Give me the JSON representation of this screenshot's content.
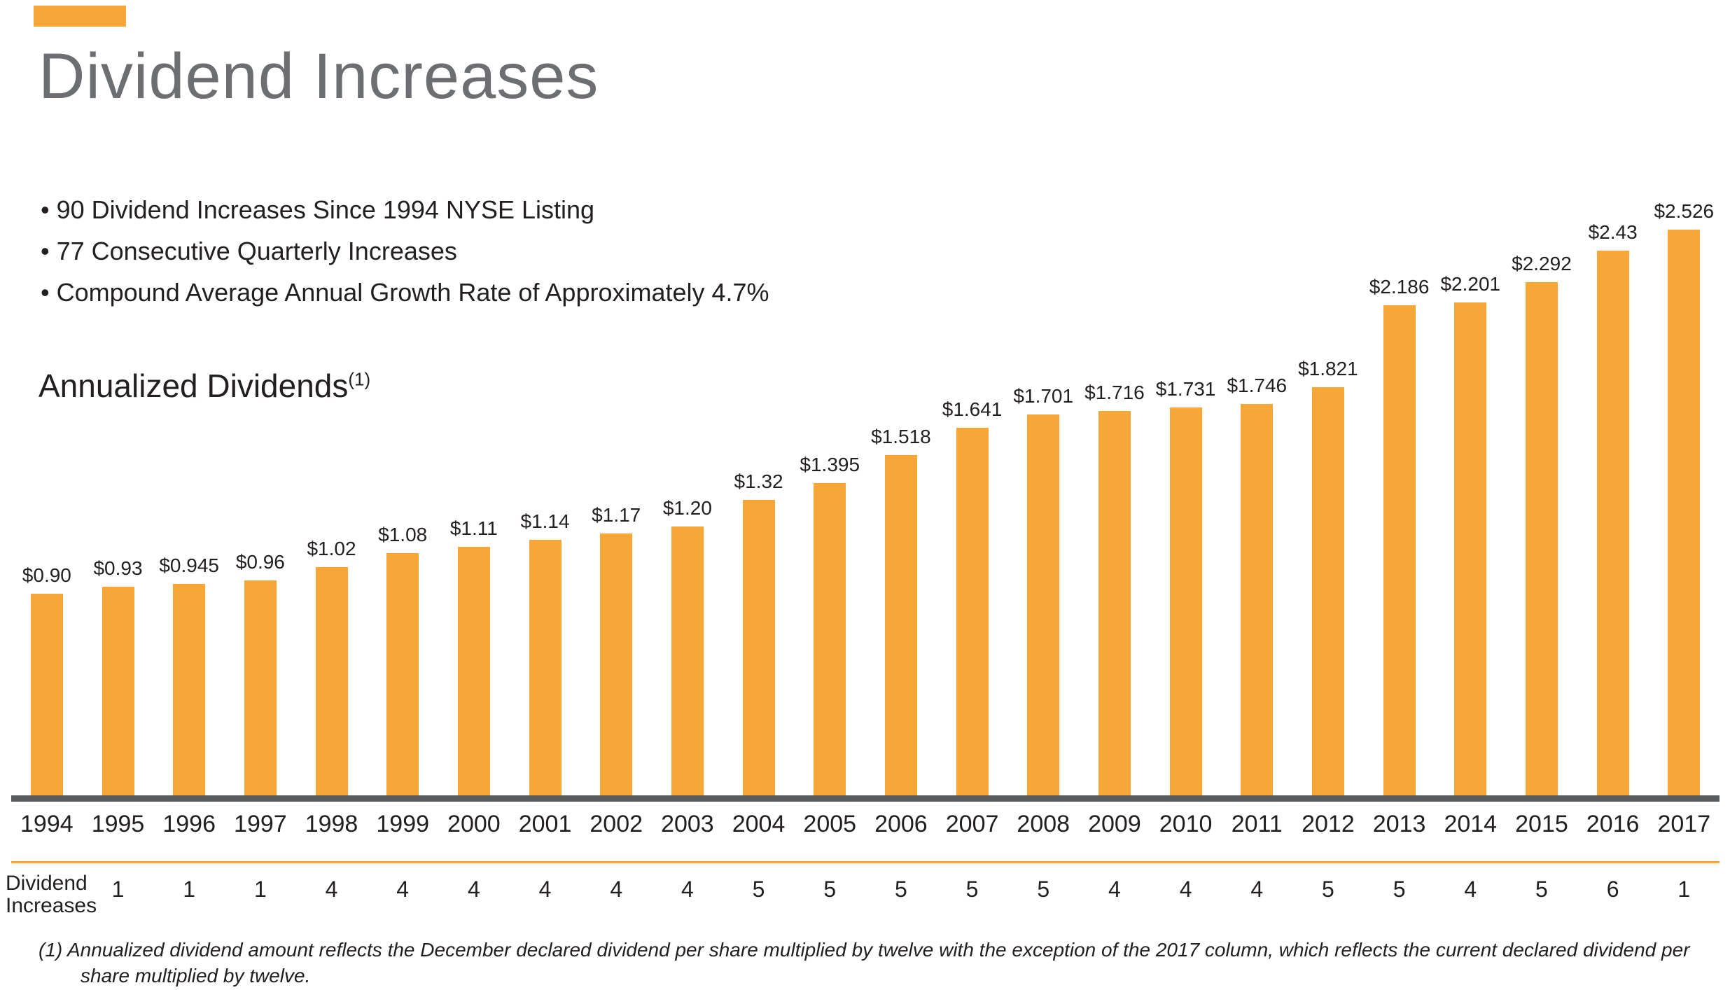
{
  "colors": {
    "accent": "#F7A738",
    "title_gray": "#6D6E71",
    "axis_gray": "#595A5C",
    "text": "#231F20"
  },
  "title": "Dividend Increases",
  "bullets": [
    "90 Dividend Increases Since 1994 NYSE Listing",
    "77 Consecutive Quarterly Increases",
    "Compound Average Annual Growth Rate of Approximately 4.7%"
  ],
  "subtitle": "Annualized Dividends",
  "subtitle_superscript": "(1)",
  "chart_data": {
    "type": "bar",
    "title": "Annualized Dividends",
    "categories": [
      "1994",
      "1995",
      "1996",
      "1997",
      "1998",
      "1999",
      "2000",
      "2001",
      "2002",
      "2003",
      "2004",
      "2005",
      "2006",
      "2007",
      "2008",
      "2009",
      "2010",
      "2011",
      "2012",
      "2013",
      "2014",
      "2015",
      "2016",
      "2017"
    ],
    "values": [
      0.9,
      0.93,
      0.945,
      0.96,
      1.02,
      1.08,
      1.11,
      1.14,
      1.17,
      1.2,
      1.32,
      1.395,
      1.518,
      1.641,
      1.701,
      1.716,
      1.731,
      1.746,
      1.821,
      2.186,
      2.201,
      2.292,
      2.43,
      2.526
    ],
    "value_labels": [
      "$0.90",
      "$0.93",
      "$0.945",
      "$0.96",
      "$1.02",
      "$1.08",
      "$1.11",
      "$1.14",
      "$1.17",
      "$1.20",
      "$1.32",
      "$1.395",
      "$1.518",
      "$1.641",
      "$1.701",
      "$1.716",
      "$1.731",
      "$1.746",
      "$1.821",
      "$2.186",
      "$2.201",
      "$2.292",
      "$2.43",
      "$2.526"
    ],
    "bar_color": "#F7A738",
    "xlabel": "",
    "ylabel": "",
    "ylim": [
      0,
      2.6
    ],
    "grid": false,
    "legend": "none"
  },
  "increases_row": {
    "label_line1": "Dividend",
    "label_line2": "Increases",
    "values": [
      "1",
      "1",
      "1",
      "4",
      "4",
      "4",
      "4",
      "4",
      "4",
      "5",
      "5",
      "5",
      "5",
      "5",
      "4",
      "4",
      "4",
      "5",
      "5",
      "4",
      "5",
      "6",
      "1"
    ]
  },
  "footnote": "(1) Annualized dividend amount reflects the December declared dividend per share multiplied by twelve with the exception of the 2017 column, which reflects the current declared dividend per share multiplied by twelve."
}
